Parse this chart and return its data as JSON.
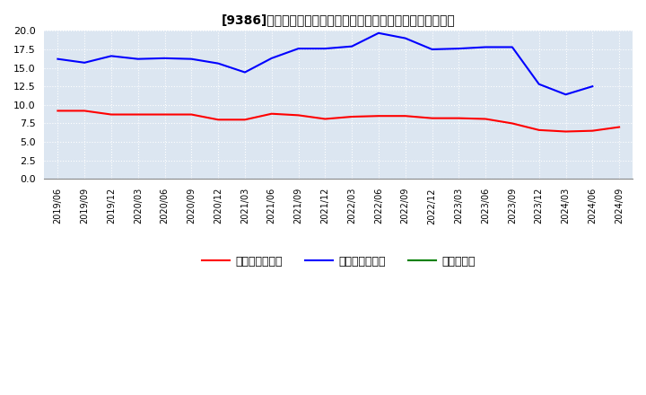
{
  "title": "[9386]　売上債権回転率、買入債務回転率、在庫回転率の推移",
  "x_labels": [
    "2019/06",
    "2019/09",
    "2019/12",
    "2020/03",
    "2020/06",
    "2020/09",
    "2020/12",
    "2021/03",
    "2021/06",
    "2021/09",
    "2021/12",
    "2022/03",
    "2022/06",
    "2022/09",
    "2022/12",
    "2023/03",
    "2023/06",
    "2023/09",
    "2023/12",
    "2024/03",
    "2024/06",
    "2024/09"
  ],
  "receivables_turnover": [
    9.2,
    9.2,
    8.7,
    8.7,
    8.7,
    8.7,
    8.0,
    8.0,
    8.8,
    8.6,
    8.1,
    8.4,
    8.5,
    8.5,
    8.2,
    8.2,
    8.1,
    7.5,
    6.6,
    6.4,
    6.5,
    7.0
  ],
  "payables_turnover": [
    16.2,
    15.7,
    16.6,
    16.2,
    16.3,
    16.2,
    15.6,
    14.4,
    16.3,
    17.6,
    17.6,
    17.9,
    19.7,
    19.0,
    17.5,
    17.6,
    17.8,
    17.8,
    12.8,
    11.4,
    12.5,
    null
  ],
  "inventory_turnover": [
    null,
    null,
    null,
    null,
    null,
    null,
    null,
    null,
    null,
    null,
    null,
    null,
    null,
    null,
    null,
    null,
    null,
    null,
    null,
    null,
    null,
    null
  ],
  "line_colors": {
    "receivables": "#ff0000",
    "payables": "#0000ff",
    "inventory": "#008000"
  },
  "ylim": [
    0.0,
    20.0
  ],
  "yticks": [
    0.0,
    2.5,
    5.0,
    7.5,
    10.0,
    12.5,
    15.0,
    17.5,
    20.0
  ],
  "background_color": "#ffffff",
  "plot_bg_color": "#dce6f1",
  "grid_color": "#ffffff",
  "legend_labels": [
    "売上債権回転率",
    "買入債務回転率",
    "在庫回転率"
  ]
}
